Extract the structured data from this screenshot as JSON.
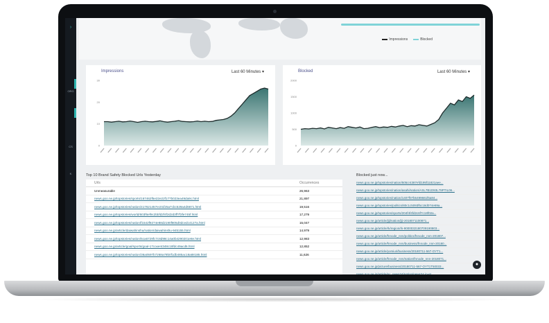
{
  "legend": {
    "impressions": "Impressions",
    "blocked": "Blocked",
    "impressions_color": "#222222",
    "blocked_color": "#7fd3d8"
  },
  "sidebar": {
    "items": [
      "ORG",
      "CS",
      "K"
    ]
  },
  "impressions_panel": {
    "title": "Impressions",
    "range": "Last 60 Minutes",
    "chart_data": {
      "type": "area",
      "title": "Impressions",
      "y_ticks": [
        "0",
        "10",
        "20",
        "30"
      ],
      "ylim": [
        0,
        30
      ],
      "values": [
        11,
        11,
        10.8,
        11,
        11.2,
        10.9,
        11,
        11.3,
        11,
        10.7,
        11,
        11.2,
        11,
        10.9,
        11.1,
        11.4,
        11,
        10.8,
        11,
        11.2,
        11.5,
        11.1,
        11,
        10.9,
        11,
        11.3,
        11,
        11.2,
        11,
        11.1,
        11.6,
        11.8,
        12,
        12.5,
        13.5,
        15,
        17,
        19,
        21,
        23,
        24,
        25,
        26,
        26.5,
        26
      ]
    }
  },
  "blocked_panel": {
    "title": "Blocked",
    "range": "Last 60 Minutes",
    "chart_data": {
      "type": "area",
      "title": "Blocked",
      "y_ticks": [
        "0",
        "500",
        "1000",
        "1500",
        "2000"
      ],
      "ylim": [
        0,
        2000
      ],
      "values": [
        500,
        520,
        510,
        530,
        520,
        540,
        510,
        560,
        540,
        520,
        550,
        530,
        580,
        560,
        540,
        570,
        520,
        530,
        560,
        580,
        550,
        570,
        560,
        590,
        570,
        600,
        620,
        580,
        610,
        600,
        640,
        620,
        600,
        650,
        700,
        800,
        1000,
        1150,
        1300,
        1250,
        1400,
        1350,
        1500,
        1450,
        1550
      ]
    }
  },
  "top_urls": {
    "title": "Top 10 Brand Safety Blocked Urls Yesterday",
    "col_urls": "Urls",
    "col_occurrences": "Occurrences",
    "rows": [
      {
        "url": "Unmeasurable",
        "count": "26,963"
      },
      {
        "url": "news.goo.ne.jp/topstories/sports/167462f5e22e22f177b023ea49da9c.html",
        "count": "21,897"
      },
      {
        "url": "news.goo.ne.jp/topstories/nation/417621457ec01f25a7cbc529a4d6871.html",
        "count": "19,516"
      },
      {
        "url": "news.goo.ne.jp/topstories/world/603f6ef9c2bbfd2f4f2d2d3ff7f3fe745f.html",
        "count": "17,279"
      },
      {
        "url": "news.goo.ne.jp/topstories/nation/f1542f9274e88d2190f805d0dcedc4127a.html",
        "count": "15,047"
      },
      {
        "url": "news.goo.ne.jp/article/daiwahinshu/nation/daiwahinshu-945155.html",
        "count": "14,979"
      },
      {
        "url": "news.goo.ne.jp/topstories/nation/5ca6729fc7c8d98c14a0b4290201e8e.html",
        "count": "12,983"
      },
      {
        "url": "news.goo.ne.jp/article/goal/sports/goal-17coxent348c18fdc49acd6.html",
        "count": "12,852"
      },
      {
        "url": "news.goo.ne.jp/topstories/nation/36a0597b7268a79b0f1db485ac18a88185.html",
        "count": "11,626"
      }
    ]
  },
  "feed": {
    "title": "Blocked just now...",
    "items": [
      "news.goo.ne.jp/topstories/nation/505cr4387efd195f11821aee...",
      "news.goo.ne.jp/topstories/nation/asahi/nation/ASL7B1D93L79PTIL06...",
      "news.goo.ne.jp/topstories/nation/1407f07b6499661f6a84...",
      "news.goo.ne.jp/topstories/politics/80c1c5093f5c18d074e69a...",
      "news.goo.ne.jp/topstories/sports/204f4f4fd2c6f7c18f02a...",
      "news.goo.ne.jp/article/jiji/nation/jiji-2018071100871...",
      "news.goo.ne.jp/article/rk/region/rk-9000032180709190803...",
      "news.goo.ne.jp/article/fnnode_nnn/politics/fnnode_nnn-201807...",
      "news.goo.ne.jp/article/fnnode_nnn/business/fnnode_nnn-20180...",
      "news.goo.ne.jp/article/yomiuri/business/20180711-567-OYT1...",
      "news.goo.ne.jp/article/fnnode_nnn/nation/fnnode_nnn-2018071...",
      "news.goo.ne.jp/picture/business/20180711-567-OYT1T50033...",
      "news.goo.ne.jp/article/nc_news24/nation/news24.jp-et...",
      "news.goo.ne.jp/article/asahi/nation/ASL7B0XLRL7BPTFS0..."
    ]
  }
}
